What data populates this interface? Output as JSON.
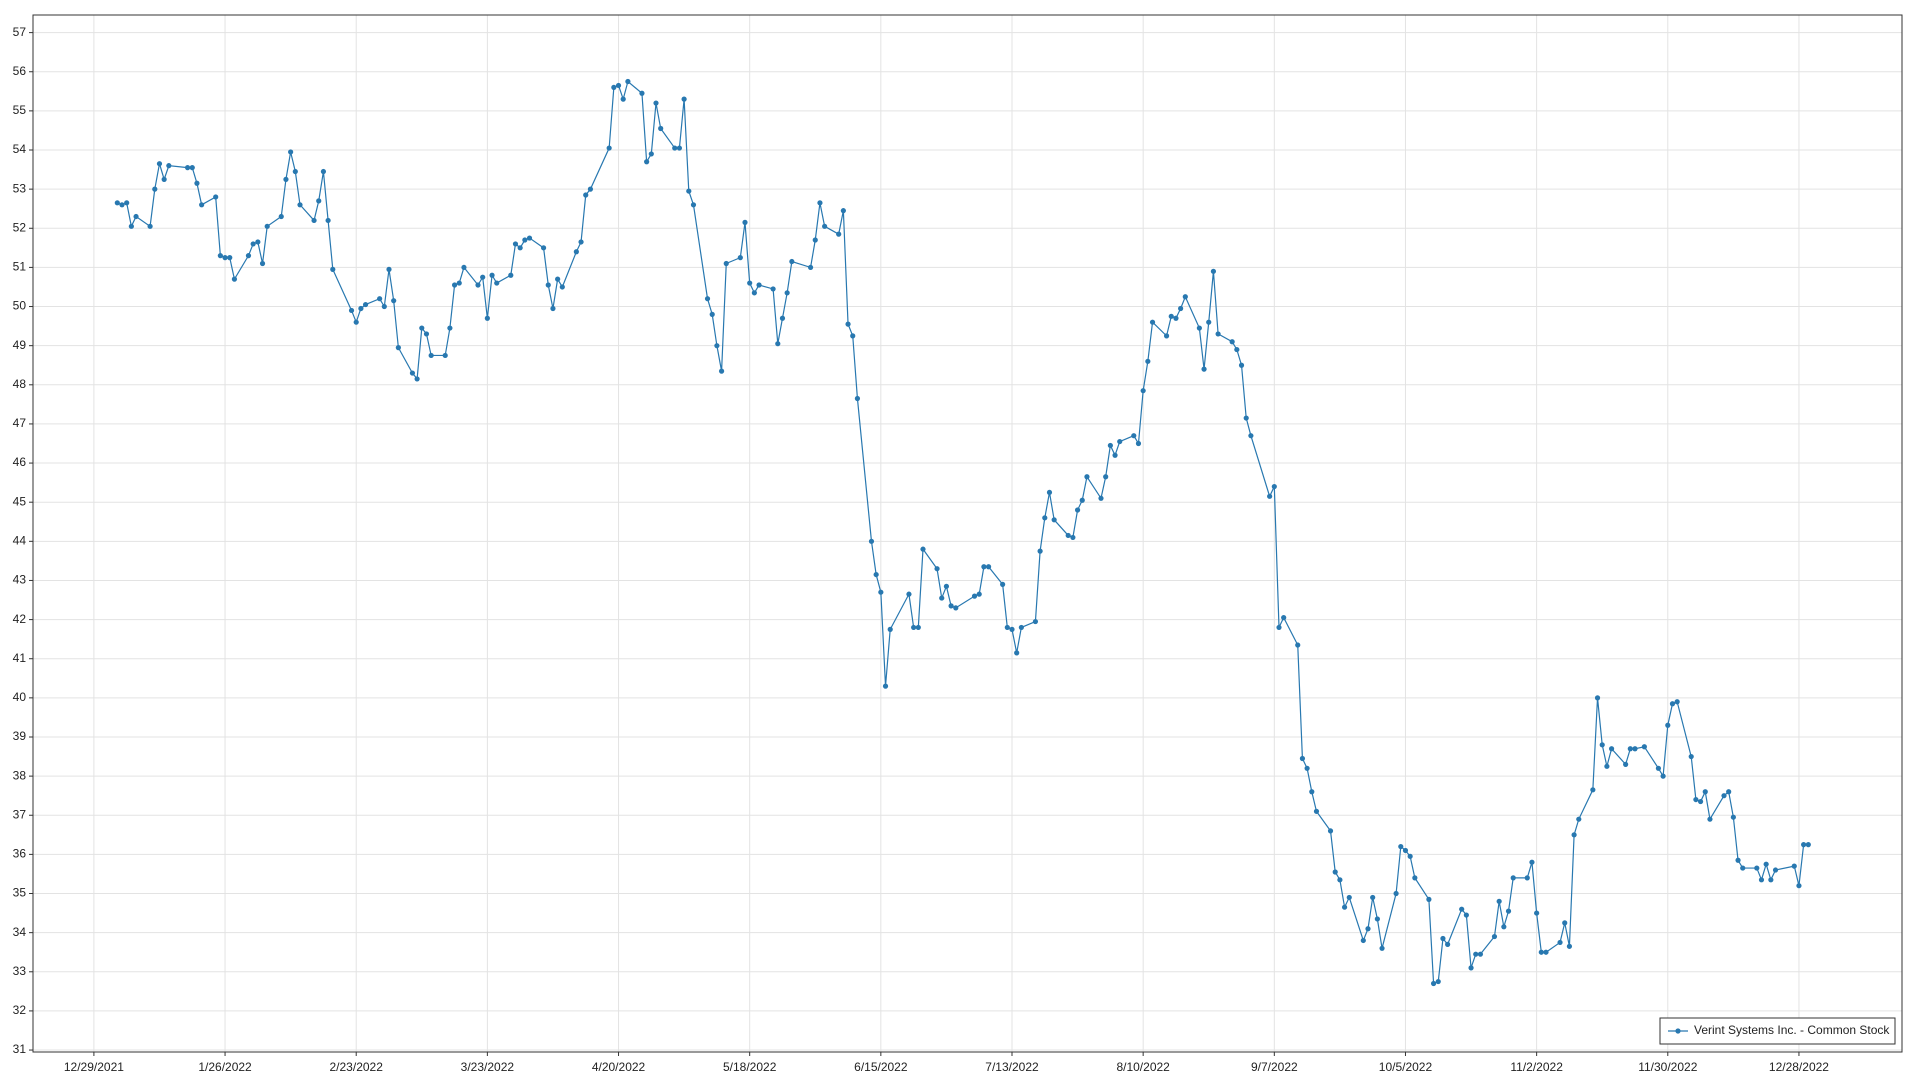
{
  "chart_data": {
    "type": "line",
    "x": [
      "1/3/2022",
      "1/4/2022",
      "1/5/2022",
      "1/6/2022",
      "1/7/2022",
      "1/10/2022",
      "1/11/2022",
      "1/12/2022",
      "1/13/2022",
      "1/14/2022",
      "1/18/2022",
      "1/19/2022",
      "1/20/2022",
      "1/21/2022",
      "1/24/2022",
      "1/25/2022",
      "1/26/2022",
      "1/27/2022",
      "1/28/2022",
      "1/31/2022",
      "2/1/2022",
      "2/2/2022",
      "2/3/2022",
      "2/4/2022",
      "2/7/2022",
      "2/8/2022",
      "2/9/2022",
      "2/10/2022",
      "2/11/2022",
      "2/14/2022",
      "2/15/2022",
      "2/16/2022",
      "2/17/2022",
      "2/18/2022",
      "2/22/2022",
      "2/23/2022",
      "2/24/2022",
      "2/25/2022",
      "2/28/2022",
      "3/1/2022",
      "3/2/2022",
      "3/3/2022",
      "3/4/2022",
      "3/7/2022",
      "3/8/2022",
      "3/9/2022",
      "3/10/2022",
      "3/11/2022",
      "3/14/2022",
      "3/15/2022",
      "3/16/2022",
      "3/17/2022",
      "3/18/2022",
      "3/21/2022",
      "3/22/2022",
      "3/23/2022",
      "3/24/2022",
      "3/25/2022",
      "3/28/2022",
      "3/29/2022",
      "3/30/2022",
      "3/31/2022",
      "4/1/2022",
      "4/4/2022",
      "4/5/2022",
      "4/6/2022",
      "4/7/2022",
      "4/8/2022",
      "4/11/2022",
      "4/12/2022",
      "4/13/2022",
      "4/14/2022",
      "4/18/2022",
      "4/19/2022",
      "4/20/2022",
      "4/21/2022",
      "4/22/2022",
      "4/25/2022",
      "4/26/2022",
      "4/27/2022",
      "4/28/2022",
      "4/29/2022",
      "5/2/2022",
      "5/3/2022",
      "5/4/2022",
      "5/5/2022",
      "5/6/2022",
      "5/9/2022",
      "5/10/2022",
      "5/11/2022",
      "5/12/2022",
      "5/13/2022",
      "5/16/2022",
      "5/17/2022",
      "5/18/2022",
      "5/19/2022",
      "5/20/2022",
      "5/23/2022",
      "5/24/2022",
      "5/25/2022",
      "5/26/2022",
      "5/27/2022",
      "5/31/2022",
      "6/1/2022",
      "6/2/2022",
      "6/3/2022",
      "6/6/2022",
      "6/7/2022",
      "6/8/2022",
      "6/9/2022",
      "6/10/2022",
      "6/13/2022",
      "6/14/2022",
      "6/15/2022",
      "6/16/2022",
      "6/17/2022",
      "6/21/2022",
      "6/22/2022",
      "6/23/2022",
      "6/24/2022",
      "6/27/2022",
      "6/28/2022",
      "6/29/2022",
      "6/30/2022",
      "7/1/2022",
      "7/5/2022",
      "7/6/2022",
      "7/7/2022",
      "7/8/2022",
      "7/11/2022",
      "7/12/2022",
      "7/13/2022",
      "7/14/2022",
      "7/15/2022",
      "7/18/2022",
      "7/19/2022",
      "7/20/2022",
      "7/21/2022",
      "7/22/2022",
      "7/25/2022",
      "7/26/2022",
      "7/27/2022",
      "7/28/2022",
      "7/29/2022",
      "8/1/2022",
      "8/2/2022",
      "8/3/2022",
      "8/4/2022",
      "8/5/2022",
      "8/8/2022",
      "8/9/2022",
      "8/10/2022",
      "8/11/2022",
      "8/12/2022",
      "8/15/2022",
      "8/16/2022",
      "8/17/2022",
      "8/18/2022",
      "8/19/2022",
      "8/22/2022",
      "8/23/2022",
      "8/24/2022",
      "8/25/2022",
      "8/26/2022",
      "8/29/2022",
      "8/30/2022",
      "8/31/2022",
      "9/1/2022",
      "9/2/2022",
      "9/6/2022",
      "9/7/2022",
      "9/8/2022",
      "9/9/2022",
      "9/12/2022",
      "9/13/2022",
      "9/14/2022",
      "9/15/2022",
      "9/16/2022",
      "9/19/2022",
      "9/20/2022",
      "9/21/2022",
      "9/22/2022",
      "9/23/2022",
      "9/26/2022",
      "9/27/2022",
      "9/28/2022",
      "9/29/2022",
      "9/30/2022",
      "10/3/2022",
      "10/4/2022",
      "10/5/2022",
      "10/6/2022",
      "10/7/2022",
      "10/10/2022",
      "10/11/2022",
      "10/12/2022",
      "10/13/2022",
      "10/14/2022",
      "10/17/2022",
      "10/18/2022",
      "10/19/2022",
      "10/20/2022",
      "10/21/2022",
      "10/24/2022",
      "10/25/2022",
      "10/26/2022",
      "10/27/2022",
      "10/28/2022",
      "10/31/2022",
      "11/1/2022",
      "11/2/2022",
      "11/3/2022",
      "11/4/2022",
      "11/7/2022",
      "11/8/2022",
      "11/9/2022",
      "11/10/2022",
      "11/11/2022",
      "11/14/2022",
      "11/15/2022",
      "11/16/2022",
      "11/17/2022",
      "11/18/2022",
      "11/21/2022",
      "11/22/2022",
      "11/23/2022",
      "11/25/2022",
      "11/28/2022",
      "11/29/2022",
      "11/30/2022",
      "12/1/2022",
      "12/2/2022",
      "12/5/2022",
      "12/6/2022",
      "12/7/2022",
      "12/8/2022",
      "12/9/2022",
      "12/12/2022",
      "12/13/2022",
      "12/14/2022",
      "12/15/2022",
      "12/16/2022",
      "12/19/2022",
      "12/20/2022",
      "12/21/2022",
      "12/22/2022",
      "12/23/2022",
      "12/27/2022",
      "12/28/2022",
      "12/29/2022",
      "12/30/2022"
    ],
    "series": [
      {
        "name": "Verint Systems Inc. - Common Stock",
        "color": "#2878b0",
        "values": [
          52.65,
          52.6,
          52.65,
          52.05,
          52.3,
          52.05,
          53,
          53.65,
          53.25,
          53.6,
          53.55,
          53.55,
          53.15,
          52.6,
          52.8,
          51.3,
          51.25,
          51.25,
          50.7,
          51.3,
          51.6,
          51.65,
          51.1,
          52.05,
          52.3,
          53.25,
          53.95,
          53.45,
          52.6,
          52.2,
          52.7,
          53.45,
          52.2,
          50.95,
          49.9,
          49.6,
          49.95,
          50.05,
          50.2,
          50,
          50.95,
          50.15,
          48.95,
          48.3,
          48.15,
          49.45,
          49.3,
          48.75,
          48.75,
          49.45,
          50.55,
          50.6,
          51,
          50.55,
          50.75,
          49.7,
          50.8,
          50.6,
          50.8,
          51.6,
          51.5,
          51.7,
          51.75,
          51.5,
          50.55,
          49.95,
          50.7,
          50.5,
          51.4,
          51.65,
          52.85,
          53,
          54.05,
          55.6,
          55.65,
          55.3,
          55.75,
          55.45,
          53.7,
          53.9,
          55.2,
          54.55,
          54.05,
          54.05,
          55.3,
          52.95,
          52.6,
          50.2,
          49.8,
          49,
          48.35,
          51.1,
          51.25,
          52.15,
          50.6,
          50.35,
          50.55,
          50.45,
          49.05,
          49.7,
          50.35,
          51.15,
          51,
          51.7,
          52.65,
          52.05,
          51.85,
          52.45,
          49.55,
          49.25,
          47.65,
          44,
          43.15,
          42.7,
          40.3,
          41.75,
          42.65,
          41.8,
          41.8,
          43.8,
          43.3,
          42.55,
          42.85,
          42.35,
          42.3,
          42.6,
          42.65,
          43.35,
          43.35,
          42.9,
          41.8,
          41.75,
          41.15,
          41.8,
          41.95,
          43.75,
          44.6,
          45.25,
          44.55,
          44.15,
          44.1,
          44.8,
          45.05,
          45.65,
          45.1,
          45.65,
          46.45,
          46.2,
          46.55,
          46.7,
          46.5,
          47.85,
          48.6,
          49.6,
          49.25,
          49.75,
          49.7,
          49.95,
          50.25,
          49.45,
          48.4,
          49.6,
          50.9,
          49.3,
          49.1,
          48.9,
          48.5,
          47.15,
          46.7,
          45.15,
          45.4,
          41.8,
          42.05,
          41.35,
          38.45,
          38.2,
          37.6,
          37.1,
          36.6,
          35.55,
          35.35,
          34.65,
          34.9,
          33.8,
          34.1,
          34.9,
          34.35,
          33.6,
          35,
          36.2,
          36.1,
          35.95,
          35.4,
          34.85,
          32.7,
          32.75,
          33.85,
          33.7,
          34.6,
          34.45,
          33.1,
          33.45,
          33.45,
          33.9,
          34.8,
          34.15,
          34.55,
          35.4,
          35.4,
          35.8,
          34.5,
          33.5,
          33.5,
          33.75,
          34.25,
          33.65,
          36.5,
          36.9,
          37.65,
          40,
          38.8,
          38.25,
          38.7,
          38.3,
          38.7,
          38.7,
          38.75,
          38.2,
          38,
          39.3,
          39.85,
          39.9,
          38.5,
          37.4,
          37.35,
          37.6,
          36.9,
          37.5,
          37.6,
          36.95,
          35.85,
          35.65,
          35.65,
          35.35,
          35.75,
          35.35,
          35.6,
          35.7,
          35.2,
          36.25,
          36.25
        ]
      }
    ],
    "xlim": [
      "12/16/2021",
      "1/19/2023"
    ],
    "xticks": [
      "12/29/2021",
      "1/26/2022",
      "2/23/2022",
      "3/23/2022",
      "4/20/2022",
      "5/18/2022",
      "6/15/2022",
      "7/13/2022",
      "8/10/2022",
      "9/7/2022",
      "10/5/2022",
      "11/2/2022",
      "11/30/2022",
      "12/28/2022"
    ],
    "ylim": [
      30.95,
      57.45
    ],
    "yticks": [
      31,
      32,
      33,
      34,
      35,
      36,
      37,
      38,
      39,
      40,
      41,
      42,
      43,
      44,
      45,
      46,
      47,
      48,
      49,
      50,
      51,
      52,
      53,
      54,
      55,
      56,
      57
    ],
    "grid": true,
    "legend": "lower right"
  }
}
